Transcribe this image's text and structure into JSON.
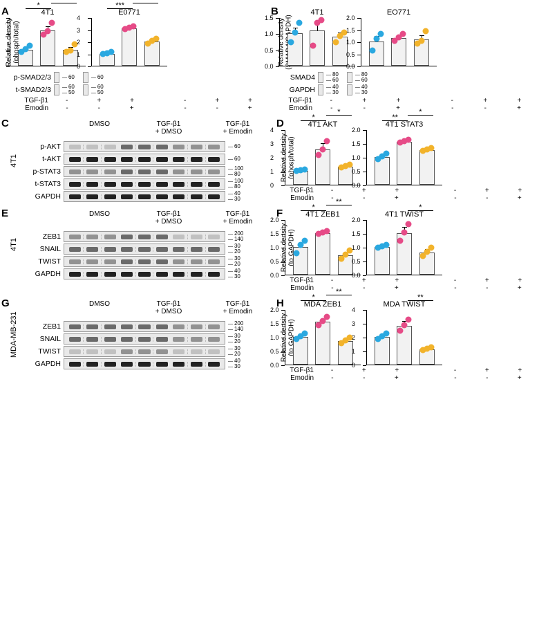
{
  "colors": {
    "dot_ctrl": "#2aa8e0",
    "dot_tgf": "#e64b87",
    "dot_emodin": "#f2b32b",
    "bar_fill": "#f2f2f2",
    "bar_border": "#555555",
    "blot_bg": "#e9e9e9"
  },
  "panel_letters": {
    "A": "A",
    "B": "B",
    "C": "C",
    "D": "D",
    "E": "E",
    "F": "F",
    "G": "G",
    "H": "H"
  },
  "conditions": {
    "tgf_label": "TGF-β1",
    "emodin_label": "Emodin",
    "col1_tgf": "-",
    "col1_em": "-",
    "col2_tgf": "+",
    "col2_em": "-",
    "col3_tgf": "+",
    "col3_em": "+"
  },
  "col_headers": {
    "c1": "DMSO",
    "c2_l1": "TGF-β1",
    "c2_l2": "+ DMSO",
    "c3_l1": "TGF-β1",
    "c3_l2": "+ Emodin"
  },
  "A": {
    "chart1": {
      "title": "4T1",
      "ylabel": "Relative density\n(phosph/total)",
      "ylim": [
        0,
        3
      ],
      "ytick_step": 1,
      "values": [
        1.0,
        2.2,
        1.0
      ],
      "err": [
        0.1,
        0.3,
        0.2
      ],
      "dots": [
        [
          0.8,
          1.0,
          1.2
        ],
        [
          1.9,
          2.1,
          2.6
        ],
        [
          0.8,
          0.9,
          1.3
        ]
      ],
      "sig": [
        {
          "from": 0,
          "to": 1,
          "label": "*"
        },
        {
          "from": 1,
          "to": 2,
          "label": "*"
        }
      ]
    },
    "chart2": {
      "title": "E0771",
      "ylim": [
        0,
        4
      ],
      "ytick_step": 1,
      "values": [
        1.0,
        3.1,
        2.0
      ],
      "err": [
        0.1,
        0.15,
        0.15
      ],
      "dots": [
        [
          0.9,
          1.0,
          1.1
        ],
        [
          3.0,
          3.1,
          3.2
        ],
        [
          1.8,
          2.0,
          2.2
        ]
      ],
      "sig": [
        {
          "from": 0,
          "to": 1,
          "label": "***"
        },
        {
          "from": 1,
          "to": 2,
          "label": "*"
        }
      ]
    },
    "blot1": {
      "rows": [
        {
          "label": "p-SMAD2/3",
          "bands": [
            "faint",
            "strong",
            "light"
          ],
          "mw": [
            "60"
          ]
        },
        {
          "label": "t-SMAD2/3",
          "bands": [
            "med",
            "strong",
            "strong"
          ],
          "mw": [
            "60",
            "50"
          ]
        }
      ]
    },
    "blot2": {
      "rows": [
        {
          "label": "",
          "bands": [
            "faint",
            "strong",
            "med"
          ],
          "mw": [
            "60"
          ]
        },
        {
          "label": "",
          "bands": [
            "med",
            "med",
            "med"
          ],
          "mw": [
            "60",
            "50"
          ]
        }
      ]
    }
  },
  "B": {
    "chart1": {
      "title": "4T1",
      "ylabel": "Relative density\n(SMAD4/GAPDH)",
      "ylim": [
        0,
        1.5
      ],
      "ytick_step": 0.5,
      "values": [
        1.0,
        1.1,
        0.9
      ],
      "err": [
        0.2,
        0.3,
        0.15
      ],
      "dots": [
        [
          0.7,
          1.0,
          1.3
        ],
        [
          0.6,
          1.3,
          1.4
        ],
        [
          0.7,
          0.9,
          1.0
        ]
      ],
      "sig": []
    },
    "chart2": {
      "title": "EO771",
      "ylim": [
        0,
        2.0
      ],
      "ytick_step": 0.5,
      "values": [
        1.0,
        1.15,
        1.1
      ],
      "err": [
        0.25,
        0.15,
        0.2
      ],
      "dots": [
        [
          0.6,
          1.1,
          1.3
        ],
        [
          1.0,
          1.15,
          1.3
        ],
        [
          0.9,
          1.0,
          1.4
        ]
      ],
      "sig": []
    },
    "blot1": {
      "rows": [
        {
          "label": "SMAD4",
          "bands": [
            "med",
            "med",
            "med"
          ],
          "mw": [
            "80",
            "60"
          ]
        },
        {
          "label": "GAPDH",
          "bands": [
            "strong",
            "strong",
            "strong"
          ],
          "mw": [
            "40",
            "30"
          ]
        }
      ]
    },
    "blot2": {
      "rows": [
        {
          "label": "",
          "bands": [
            "med",
            "med",
            "med"
          ],
          "mw": [
            "80",
            "60"
          ]
        },
        {
          "label": "",
          "bands": [
            "strong",
            "strong",
            "strong"
          ],
          "mw": [
            "40",
            "30"
          ]
        }
      ]
    }
  },
  "C": {
    "sidelabel": "4T1",
    "rows": [
      {
        "label": "p-AKT",
        "bands": [
          "faint",
          "faint",
          "faint",
          "med",
          "med",
          "med",
          "light",
          "light",
          "light"
        ],
        "mw": [
          "60"
        ]
      },
      {
        "label": "t-AKT",
        "bands": [
          "strong",
          "strong",
          "strong",
          "strong",
          "strong",
          "strong",
          "strong",
          "strong",
          "strong"
        ],
        "mw": [
          "60"
        ]
      },
      {
        "label": "p-STAT3",
        "bands": [
          "light",
          "light",
          "light",
          "med",
          "med",
          "med",
          "light",
          "light",
          "light"
        ],
        "mw": [
          "100",
          "80"
        ]
      },
      {
        "label": "t-STAT3",
        "bands": [
          "strong",
          "strong",
          "strong",
          "strong",
          "strong",
          "strong",
          "strong",
          "strong",
          "strong"
        ],
        "mw": [
          "100",
          "80"
        ]
      },
      {
        "label": "GAPDH",
        "bands": [
          "strong",
          "strong",
          "strong",
          "strong",
          "strong",
          "strong",
          "strong",
          "strong",
          "strong"
        ],
        "mw": [
          "40",
          "30"
        ]
      }
    ]
  },
  "D": {
    "chart1": {
      "title": "4T1 AKT",
      "ylabel": "Relative density\n(phosph/total)",
      "ylim": [
        0,
        4
      ],
      "ytick_step": 1,
      "values": [
        1.0,
        2.55,
        1.3
      ],
      "err": [
        0.05,
        0.5,
        0.1
      ],
      "dots": [
        [
          0.95,
          1.0,
          1.05
        ],
        [
          2.1,
          2.5,
          3.1
        ],
        [
          1.2,
          1.3,
          1.4
        ]
      ],
      "sig": [
        {
          "from": 0,
          "to": 1,
          "label": "*"
        },
        {
          "from": 1,
          "to": 2,
          "label": "*"
        }
      ]
    },
    "chart2": {
      "title": "4T1 STAT3",
      "ylim": [
        0,
        2.0
      ],
      "ytick_step": 0.5,
      "values": [
        1.0,
        1.55,
        1.25
      ],
      "err": [
        0.07,
        0.05,
        0.05
      ],
      "dots": [
        [
          0.9,
          1.0,
          1.1
        ],
        [
          1.5,
          1.55,
          1.6
        ],
        [
          1.2,
          1.25,
          1.3
        ]
      ],
      "sig": [
        {
          "from": 0,
          "to": 1,
          "label": "**"
        },
        {
          "from": 1,
          "to": 2,
          "label": "*"
        }
      ]
    }
  },
  "E": {
    "sidelabel": "4T1",
    "rows": [
      {
        "label": "ZEB1",
        "bands": [
          "light",
          "light",
          "light",
          "med",
          "med",
          "med",
          "faint",
          "faint",
          "faint"
        ],
        "mw": [
          "200",
          "140"
        ]
      },
      {
        "label": "SNAIL",
        "bands": [
          "med",
          "med",
          "med",
          "med",
          "med",
          "med",
          "med",
          "med",
          "med"
        ],
        "mw": [
          "30",
          "20"
        ]
      },
      {
        "label": "TWIST",
        "bands": [
          "light",
          "light",
          "light",
          "med",
          "med",
          "med",
          "light",
          "light",
          "light"
        ],
        "mw": [
          "30",
          "20"
        ]
      },
      {
        "label": "GAPDH",
        "bands": [
          "strong",
          "strong",
          "strong",
          "strong",
          "strong",
          "strong",
          "strong",
          "strong",
          "strong"
        ],
        "mw": [
          "40",
          "30"
        ]
      }
    ]
  },
  "F": {
    "chart1": {
      "title": "4T1 ZEB1",
      "ylabel": "Relative density\n(to GAPDH)",
      "ylim": [
        0,
        2.0
      ],
      "ytick_step": 0.5,
      "values": [
        1.0,
        1.5,
        0.7
      ],
      "err": [
        0.15,
        0.05,
        0.1
      ],
      "dots": [
        [
          0.75,
          1.05,
          1.2
        ],
        [
          1.45,
          1.5,
          1.55
        ],
        [
          0.55,
          0.7,
          0.85
        ]
      ],
      "sig": [
        {
          "from": 0,
          "to": 1,
          "label": "*"
        },
        {
          "from": 1,
          "to": 2,
          "label": "**"
        }
      ]
    },
    "chart2": {
      "title": "4T1 TWIST",
      "ylim": [
        0,
        2.0
      ],
      "ytick_step": 0.5,
      "values": [
        1.0,
        1.5,
        0.8
      ],
      "err": [
        0.05,
        0.25,
        0.15
      ],
      "dots": [
        [
          0.95,
          1.0,
          1.05
        ],
        [
          1.2,
          1.5,
          1.8
        ],
        [
          0.65,
          0.8,
          0.95
        ]
      ],
      "sig": [
        {
          "from": 1,
          "to": 2,
          "label": "*"
        }
      ]
    }
  },
  "G": {
    "sidelabel": "MDA-MB-231",
    "rows": [
      {
        "label": "ZEB1",
        "bands": [
          "med",
          "med",
          "med",
          "med",
          "med",
          "med",
          "light",
          "light",
          "light"
        ],
        "mw": [
          "200",
          "140"
        ]
      },
      {
        "label": "SNAIL",
        "bands": [
          "med",
          "med",
          "med",
          "med",
          "med",
          "med",
          "light",
          "light",
          "light"
        ],
        "mw": [
          "30",
          "20"
        ]
      },
      {
        "label": "TWIST",
        "bands": [
          "faint",
          "faint",
          "faint",
          "light",
          "light",
          "light",
          "faint",
          "faint",
          "faint"
        ],
        "mw": [
          "30",
          "20"
        ]
      },
      {
        "label": "GAPDH",
        "bands": [
          "strong",
          "strong",
          "strong",
          "strong",
          "strong",
          "strong",
          "strong",
          "strong",
          "strong"
        ],
        "mw": [
          "40",
          "30"
        ]
      }
    ]
  },
  "H": {
    "chart1": {
      "title": "MDA ZEB1",
      "ylabel": "Relative density\n(to GAPDH)",
      "ylim": [
        0,
        2.0
      ],
      "ytick_step": 0.5,
      "values": [
        1.0,
        1.55,
        0.85
      ],
      "err": [
        0.07,
        0.12,
        0.1
      ],
      "dots": [
        [
          0.9,
          1.0,
          1.1
        ],
        [
          1.4,
          1.55,
          1.7
        ],
        [
          0.75,
          0.85,
          0.95
        ]
      ],
      "sig": [
        {
          "from": 0,
          "to": 1,
          "label": "*"
        },
        {
          "from": 1,
          "to": 2,
          "label": "**"
        }
      ]
    },
    "chart2": {
      "title": "MDA TWIST",
      "ylim": [
        0,
        4
      ],
      "ytick_step": 1,
      "values": [
        2.0,
        2.8,
        1.1
      ],
      "err": [
        0.2,
        0.4,
        0.1
      ],
      "dots": [
        [
          1.8,
          2.0,
          2.2
        ],
        [
          2.4,
          2.8,
          3.2
        ],
        [
          1.0,
          1.1,
          1.2
        ]
      ],
      "sig": [
        {
          "from": 1,
          "to": 2,
          "label": "**"
        }
      ]
    }
  }
}
